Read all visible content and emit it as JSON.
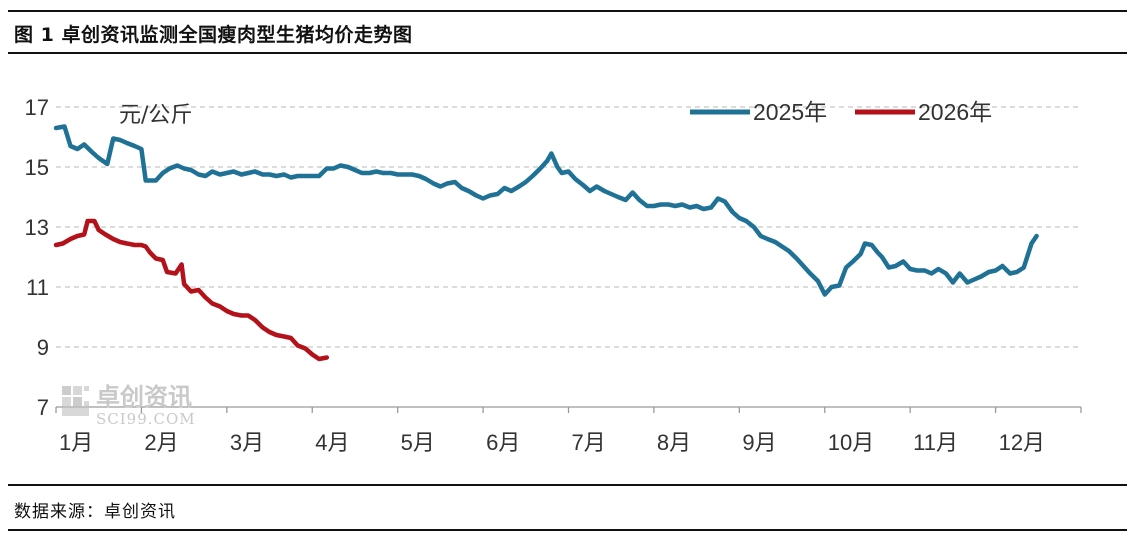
{
  "title": "图 1  卓创资讯监测全国瘦肉型生猪均价走势图",
  "source": "数据来源：卓创资讯",
  "watermark": {
    "name": "卓创资讯",
    "url": "SCI99.COM"
  },
  "colors": {
    "series_2025": "#1f7296",
    "series_2026": "#b3121a",
    "grid": "#c8c8c8"
  },
  "chart_data": {
    "type": "line",
    "ylabel": "元/公斤",
    "xlabel": "",
    "ylim": [
      7,
      17
    ],
    "yticks": [
      7,
      9,
      11,
      13,
      15,
      17
    ],
    "xlim": [
      1,
      13
    ],
    "categories": [
      "1月",
      "2月",
      "3月",
      "4月",
      "5月",
      "6月",
      "7月",
      "8月",
      "9月",
      "10月",
      "11月",
      "12月"
    ],
    "grid": "horizontal dashed",
    "legend": "top-right",
    "series": [
      {
        "name": "2025年",
        "color": "#1f7296",
        "points": [
          [
            1.0,
            16.3
          ],
          [
            1.1,
            16.35
          ],
          [
            1.17,
            15.7
          ],
          [
            1.25,
            15.6
          ],
          [
            1.33,
            15.75
          ],
          [
            1.42,
            15.5
          ],
          [
            1.5,
            15.3
          ],
          [
            1.6,
            15.1
          ],
          [
            1.67,
            15.95
          ],
          [
            1.75,
            15.9
          ],
          [
            1.83,
            15.8
          ],
          [
            1.92,
            15.7
          ],
          [
            2.0,
            15.6
          ],
          [
            2.05,
            14.55
          ],
          [
            2.17,
            14.55
          ],
          [
            2.25,
            14.8
          ],
          [
            2.33,
            14.95
          ],
          [
            2.42,
            15.05
          ],
          [
            2.5,
            14.95
          ],
          [
            2.58,
            14.9
          ],
          [
            2.67,
            14.75
          ],
          [
            2.75,
            14.7
          ],
          [
            2.83,
            14.85
          ],
          [
            2.92,
            14.75
          ],
          [
            3.0,
            14.8
          ],
          [
            3.08,
            14.85
          ],
          [
            3.17,
            14.75
          ],
          [
            3.25,
            14.8
          ],
          [
            3.33,
            14.85
          ],
          [
            3.42,
            14.75
          ],
          [
            3.5,
            14.75
          ],
          [
            3.58,
            14.7
          ],
          [
            3.67,
            14.75
          ],
          [
            3.75,
            14.65
          ],
          [
            3.83,
            14.7
          ],
          [
            3.92,
            14.7
          ],
          [
            4.0,
            14.7
          ],
          [
            4.08,
            14.7
          ],
          [
            4.17,
            14.95
          ],
          [
            4.25,
            14.95
          ],
          [
            4.33,
            15.05
          ],
          [
            4.42,
            15.0
          ],
          [
            4.5,
            14.9
          ],
          [
            4.58,
            14.8
          ],
          [
            4.67,
            14.8
          ],
          [
            4.75,
            14.85
          ],
          [
            4.83,
            14.8
          ],
          [
            4.92,
            14.8
          ],
          [
            5.0,
            14.75
          ],
          [
            5.08,
            14.75
          ],
          [
            5.17,
            14.75
          ],
          [
            5.25,
            14.7
          ],
          [
            5.33,
            14.6
          ],
          [
            5.42,
            14.45
          ],
          [
            5.5,
            14.35
          ],
          [
            5.58,
            14.45
          ],
          [
            5.67,
            14.5
          ],
          [
            5.75,
            14.3
          ],
          [
            5.83,
            14.2
          ],
          [
            5.92,
            14.05
          ],
          [
            6.0,
            13.95
          ],
          [
            6.08,
            14.05
          ],
          [
            6.17,
            14.1
          ],
          [
            6.25,
            14.3
          ],
          [
            6.33,
            14.2
          ],
          [
            6.42,
            14.35
          ],
          [
            6.5,
            14.5
          ],
          [
            6.58,
            14.7
          ],
          [
            6.67,
            14.95
          ],
          [
            6.75,
            15.2
          ],
          [
            6.8,
            15.45
          ],
          [
            6.87,
            15.0
          ],
          [
            6.92,
            14.8
          ],
          [
            7.0,
            14.85
          ],
          [
            7.08,
            14.6
          ],
          [
            7.17,
            14.4
          ],
          [
            7.25,
            14.2
          ],
          [
            7.33,
            14.35
          ],
          [
            7.42,
            14.2
          ],
          [
            7.5,
            14.1
          ],
          [
            7.58,
            14.0
          ],
          [
            7.67,
            13.9
          ],
          [
            7.75,
            14.15
          ],
          [
            7.83,
            13.9
          ],
          [
            7.92,
            13.7
          ],
          [
            8.0,
            13.7
          ],
          [
            8.08,
            13.75
          ],
          [
            8.17,
            13.75
          ],
          [
            8.25,
            13.7
          ],
          [
            8.33,
            13.75
          ],
          [
            8.42,
            13.65
          ],
          [
            8.5,
            13.7
          ],
          [
            8.58,
            13.6
          ],
          [
            8.67,
            13.65
          ],
          [
            8.75,
            13.95
          ],
          [
            8.83,
            13.85
          ],
          [
            8.92,
            13.5
          ],
          [
            9.0,
            13.3
          ],
          [
            9.08,
            13.2
          ],
          [
            9.17,
            13.0
          ],
          [
            9.25,
            12.7
          ],
          [
            9.33,
            12.6
          ],
          [
            9.42,
            12.5
          ],
          [
            9.5,
            12.35
          ],
          [
            9.58,
            12.2
          ],
          [
            9.67,
            11.95
          ],
          [
            9.75,
            11.7
          ],
          [
            9.83,
            11.45
          ],
          [
            9.92,
            11.2
          ],
          [
            10.0,
            10.75
          ],
          [
            10.08,
            11.0
          ],
          [
            10.17,
            11.05
          ],
          [
            10.25,
            11.65
          ],
          [
            10.33,
            11.85
          ],
          [
            10.42,
            12.1
          ],
          [
            10.47,
            12.45
          ],
          [
            10.55,
            12.4
          ],
          [
            10.62,
            12.15
          ],
          [
            10.67,
            12.0
          ],
          [
            10.75,
            11.65
          ],
          [
            10.83,
            11.7
          ],
          [
            10.92,
            11.85
          ],
          [
            11.0,
            11.6
          ],
          [
            11.08,
            11.55
          ],
          [
            11.17,
            11.55
          ],
          [
            11.25,
            11.45
          ],
          [
            11.33,
            11.6
          ],
          [
            11.42,
            11.45
          ],
          [
            11.5,
            11.15
          ],
          [
            11.58,
            11.45
          ],
          [
            11.67,
            11.15
          ],
          [
            11.75,
            11.25
          ],
          [
            11.83,
            11.35
          ],
          [
            11.92,
            11.5
          ],
          [
            12.0,
            11.55
          ],
          [
            12.08,
            11.7
          ],
          [
            12.17,
            11.45
          ],
          [
            12.25,
            11.5
          ],
          [
            12.33,
            11.65
          ],
          [
            12.42,
            12.45
          ],
          [
            12.48,
            12.7
          ]
        ]
      },
      {
        "name": "2026年",
        "color": "#b3121a",
        "points": [
          [
            1.0,
            12.4
          ],
          [
            1.08,
            12.45
          ],
          [
            1.17,
            12.6
          ],
          [
            1.25,
            12.7
          ],
          [
            1.33,
            12.75
          ],
          [
            1.37,
            13.2
          ],
          [
            1.45,
            13.2
          ],
          [
            1.5,
            12.9
          ],
          [
            1.58,
            12.75
          ],
          [
            1.67,
            12.6
          ],
          [
            1.75,
            12.5
          ],
          [
            1.83,
            12.45
          ],
          [
            1.92,
            12.4
          ],
          [
            2.0,
            12.4
          ],
          [
            2.05,
            12.35
          ],
          [
            2.1,
            12.15
          ],
          [
            2.17,
            11.95
          ],
          [
            2.25,
            11.9
          ],
          [
            2.3,
            11.5
          ],
          [
            2.4,
            11.45
          ],
          [
            2.47,
            11.75
          ],
          [
            2.5,
            11.1
          ],
          [
            2.58,
            10.85
          ],
          [
            2.67,
            10.9
          ],
          [
            2.75,
            10.65
          ],
          [
            2.83,
            10.45
          ],
          [
            2.92,
            10.35
          ],
          [
            3.0,
            10.2
          ],
          [
            3.08,
            10.1
          ],
          [
            3.17,
            10.05
          ],
          [
            3.25,
            10.05
          ],
          [
            3.33,
            9.9
          ],
          [
            3.42,
            9.65
          ],
          [
            3.5,
            9.5
          ],
          [
            3.58,
            9.4
          ],
          [
            3.67,
            9.35
          ],
          [
            3.75,
            9.3
          ],
          [
            3.83,
            9.05
          ],
          [
            3.92,
            8.95
          ],
          [
            4.0,
            8.75
          ],
          [
            4.08,
            8.6
          ],
          [
            4.17,
            8.65
          ]
        ]
      }
    ]
  }
}
